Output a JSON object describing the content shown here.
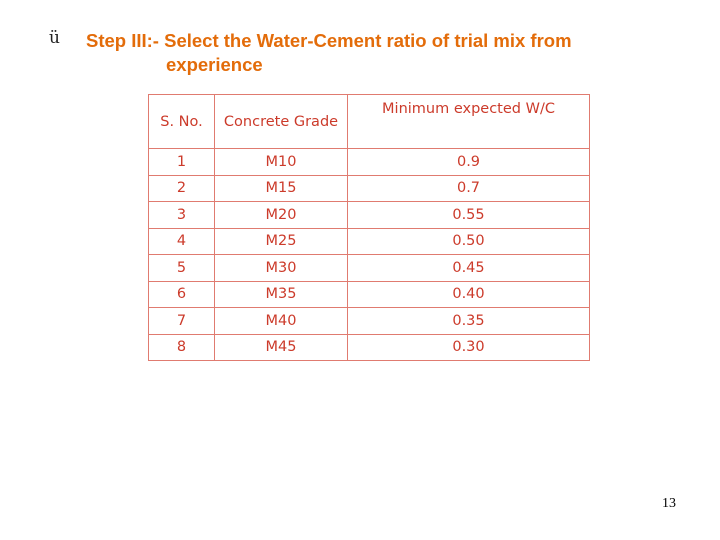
{
  "slide": {
    "bullet": "ü",
    "heading_line1": "Step III:- Select the Water-Cement ratio of trial mix from",
    "heading_line2": "experience",
    "page_number": "13"
  },
  "table": {
    "headers": [
      "S. No.",
      "Concrete Grade",
      "Minimum expected W/C"
    ],
    "rows": [
      [
        "1",
        "M10",
        "0.9"
      ],
      [
        "2",
        "M15",
        "0.7"
      ],
      [
        "3",
        "M20",
        "0.55"
      ],
      [
        "4",
        "M25",
        "0.50"
      ],
      [
        "5",
        "M30",
        "0.45"
      ],
      [
        "6",
        "M35",
        "0.40"
      ],
      [
        "7",
        "M40",
        "0.35"
      ],
      [
        "8",
        "M45",
        "0.30"
      ]
    ]
  },
  "colors": {
    "heading": "#e36c0a",
    "table_text": "#cc3b2b",
    "table_border": "#e07b70"
  }
}
